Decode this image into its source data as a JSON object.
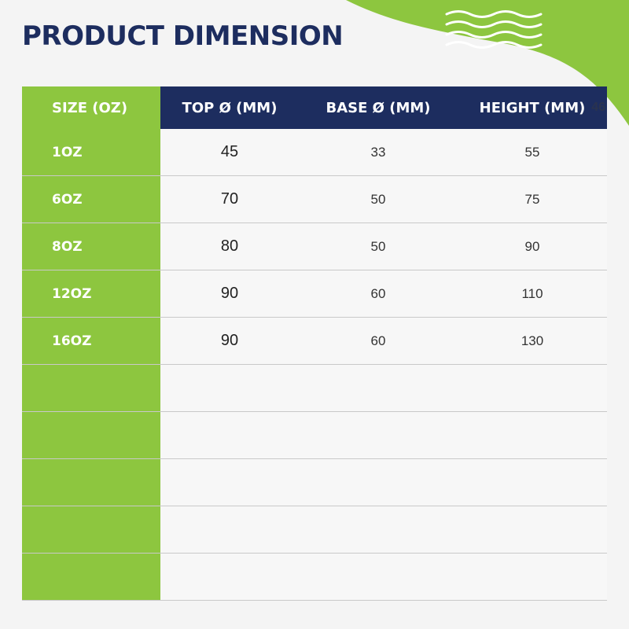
{
  "title": "PRODUCT DIMENSION",
  "colors": {
    "accent_green": "#8dc63f",
    "navy": "#1d2d5f",
    "background": "#f4f4f4"
  },
  "table": {
    "headers": {
      "size": "SIZE (OZ)",
      "top": "TOP Ø (MM)",
      "base": "BASE Ø (MM)",
      "height": "HEIGHT (MM)",
      "height_overlay": "46"
    },
    "rows": [
      {
        "size": "1OZ",
        "top": "45",
        "base": "33",
        "height": "55"
      },
      {
        "size": "6OZ",
        "top": "70",
        "base": "50",
        "height": "75"
      },
      {
        "size": "8OZ",
        "top": "80",
        "base": "50",
        "height": "90"
      },
      {
        "size": "12OZ",
        "top": "90",
        "base": "60",
        "height": "110"
      },
      {
        "size": "16OZ",
        "top": "90",
        "base": "60",
        "height": "130"
      },
      {
        "size": "",
        "top": "",
        "base": "",
        "height": ""
      },
      {
        "size": "",
        "top": "",
        "base": "",
        "height": ""
      },
      {
        "size": "",
        "top": "",
        "base": "",
        "height": ""
      },
      {
        "size": "",
        "top": "",
        "base": "",
        "height": ""
      },
      {
        "size": "",
        "top": "",
        "base": "",
        "height": ""
      }
    ]
  }
}
